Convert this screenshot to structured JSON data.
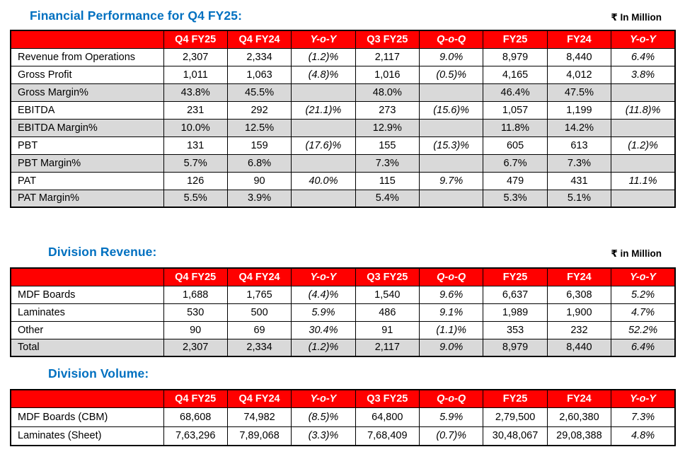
{
  "colors": {
    "title_blue": "#0070C0",
    "header_bg": "#FF0000",
    "header_text": "#FFFFFF",
    "shaded_row_bg": "#D9D9D9",
    "border": "#000000"
  },
  "sections": [
    {
      "id": "financial-performance",
      "title": "Financial Performance for Q4 FY25:",
      "unit_label": "₹ In Million",
      "columns": [
        "",
        "Q4 FY25",
        "Q4 FY24",
        "Y-o-Y",
        "Q3 FY25",
        "Q-o-Q",
        "FY25",
        "FY24",
        "Y-o-Y"
      ],
      "rows": [
        {
          "label": "Revenue from Operations",
          "shaded": false,
          "values": [
            "2,307",
            "2,334",
            "(1.2)%",
            "2,117",
            "9.0%",
            "8,979",
            "8,440",
            "6.4%"
          ]
        },
        {
          "label": "Gross Profit",
          "shaded": false,
          "values": [
            "1,011",
            "1,063",
            "(4.8)%",
            "1,016",
            "(0.5)%",
            "4,165",
            "4,012",
            "3.8%"
          ]
        },
        {
          "label": "Gross Margin%",
          "shaded": true,
          "values": [
            "43.8%",
            "45.5%",
            "",
            "48.0%",
            "",
            "46.4%",
            "47.5%",
            ""
          ]
        },
        {
          "label": "EBITDA",
          "shaded": false,
          "values": [
            "231",
            "292",
            "(21.1)%",
            "273",
            "(15.6)%",
            "1,057",
            "1,199",
            "(11.8)%"
          ]
        },
        {
          "label": "EBITDA Margin%",
          "shaded": true,
          "values": [
            "10.0%",
            "12.5%",
            "",
            "12.9%",
            "",
            "11.8%",
            "14.2%",
            ""
          ]
        },
        {
          "label": "PBT",
          "shaded": false,
          "values": [
            "131",
            "159",
            "(17.6)%",
            "155",
            "(15.3)%",
            "605",
            "613",
            "(1.2)%"
          ]
        },
        {
          "label": "PBT Margin%",
          "shaded": true,
          "values": [
            "5.7%",
            "6.8%",
            "",
            "7.3%",
            "",
            "6.7%",
            "7.3%",
            ""
          ]
        },
        {
          "label": "PAT",
          "shaded": false,
          "values": [
            "126",
            "90",
            "40.0%",
            "115",
            "9.7%",
            "479",
            "431",
            "11.1%"
          ]
        },
        {
          "label": "PAT Margin%",
          "shaded": true,
          "values": [
            "5.5%",
            "3.9%",
            "",
            "5.4%",
            "",
            "5.3%",
            "5.1%",
            ""
          ]
        }
      ]
    },
    {
      "id": "division-revenue",
      "title": "Division Revenue:",
      "unit_label": "₹ in Million",
      "columns": [
        "",
        "Q4 FY25",
        "Q4 FY24",
        "Y-o-Y",
        "Q3 FY25",
        "Q-o-Q",
        "FY25",
        "FY24",
        "Y-o-Y"
      ],
      "rows": [
        {
          "label": "MDF Boards",
          "shaded": false,
          "values": [
            "1,688",
            "1,765",
            "(4.4)%",
            "1,540",
            "9.6%",
            "6,637",
            "6,308",
            "5.2%"
          ]
        },
        {
          "label": "Laminates",
          "shaded": false,
          "values": [
            "530",
            "500",
            "5.9%",
            "486",
            "9.1%",
            "1,989",
            "1,900",
            "4.7%"
          ]
        },
        {
          "label": "Other",
          "shaded": false,
          "values": [
            "90",
            "69",
            "30.4%",
            "91",
            "(1.1)%",
            "353",
            "232",
            "52.2%"
          ]
        },
        {
          "label": "Total",
          "shaded": true,
          "values": [
            "2,307",
            "2,334",
            "(1.2)%",
            "2,117",
            "9.0%",
            "8,979",
            "8,440",
            "6.4%"
          ]
        }
      ]
    },
    {
      "id": "division-volume",
      "title": "Division Volume:",
      "unit_label": "",
      "columns": [
        "",
        "Q4 FY25",
        "Q4 FY24",
        "Y-o-Y",
        "Q3 FY25",
        "Q-o-Q",
        "FY25",
        "FY24",
        "Y-o-Y"
      ],
      "rows": [
        {
          "label": "MDF Boards (CBM)",
          "shaded": false,
          "values": [
            "68,608",
            "74,982",
            "(8.5)%",
            "64,800",
            "5.9%",
            "2,79,500",
            "2,60,380",
            "7.3%"
          ]
        },
        {
          "label": "Laminates (Sheet)",
          "shaded": false,
          "values": [
            "7,63,296",
            "7,89,068",
            "(3.3)%",
            "7,68,409",
            "(0.7)%",
            "30,48,067",
            "29,08,388",
            "4.8%"
          ]
        }
      ]
    }
  ]
}
